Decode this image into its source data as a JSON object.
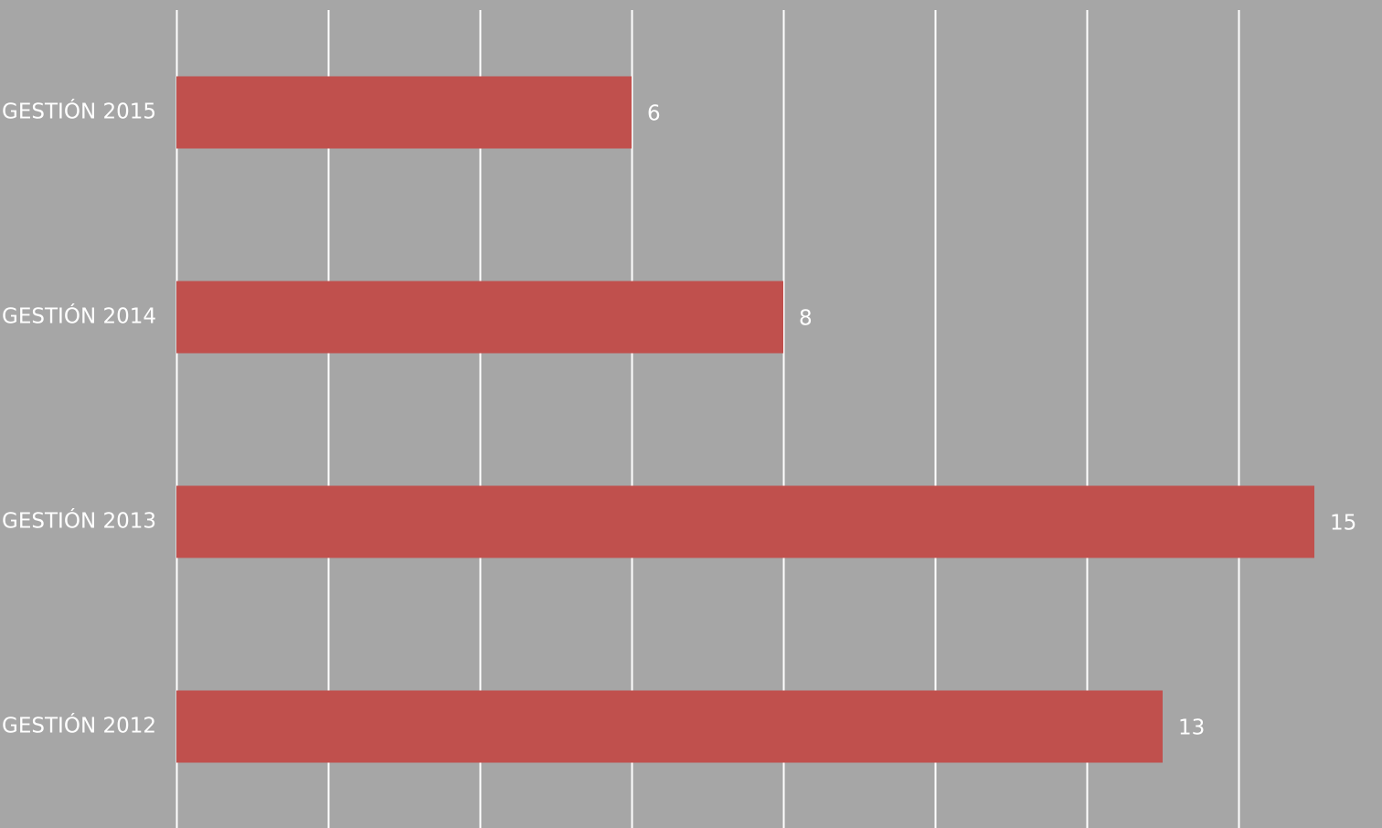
{
  "chart_data": {
    "type": "bar",
    "orientation": "horizontal",
    "categories": [
      "GESTIÓN 2015",
      "GESTIÓN 2014",
      "GESTIÓN 2013",
      "GESTIÓN 2012"
    ],
    "values": [
      6,
      8,
      15,
      13
    ],
    "xlim": [
      0,
      14.4
    ],
    "gridlines_every": 2,
    "grid": true,
    "data_labels": true,
    "colors": {
      "bar": "#c0504d",
      "background": "#a6a6a6",
      "gridline": "#ffffff",
      "text": "#ffffff"
    }
  }
}
